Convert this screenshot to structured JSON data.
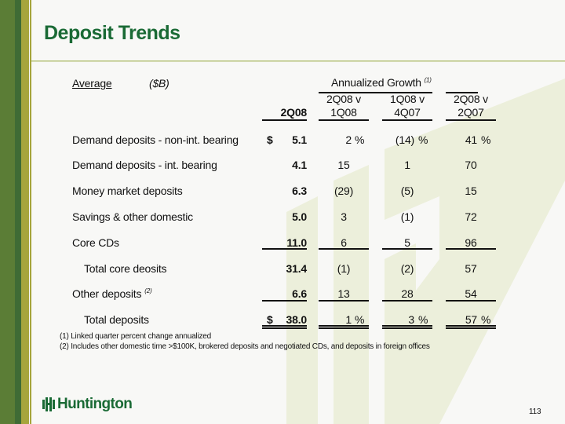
{
  "title": "Deposit Trends",
  "header": {
    "average": "Average",
    "unit": "($B)",
    "growth": "Annualized Growth",
    "growth_note": "(1)",
    "col0": "2Q08",
    "col1": [
      "2Q08 v",
      "1Q08"
    ],
    "col2": [
      "1Q08 v",
      "4Q07"
    ],
    "col3": [
      "2Q08 v",
      "2Q07"
    ]
  },
  "rows": [
    {
      "label": "Demand deposits - non-int. bearing",
      "dollar": "$",
      "value": "5.1",
      "g1": "2",
      "g2": "(14)",
      "g3": "41",
      "pct": "%"
    },
    {
      "label": "Demand deposits - int. bearing",
      "value": "4.1",
      "g1": "15",
      "g2": "1",
      "g3": "70"
    },
    {
      "label": "Money market deposits",
      "value": "6.3",
      "g1": "(29)",
      "g2": "(5)",
      "g3": "15"
    },
    {
      "label": "Savings & other domestic",
      "value": "5.0",
      "g1": "3",
      "g2": "(1)",
      "g3": "72"
    },
    {
      "label": "Core CDs",
      "value": "11.0",
      "g1": "6",
      "g2": "5",
      "g3": "96"
    },
    {
      "label": "Total core deosits",
      "value": "31.4",
      "g1": "(1)",
      "g2": "(2)",
      "g3": "57"
    },
    {
      "label": "Other deposits",
      "note": "(2)",
      "value": "6.6",
      "g1": "13",
      "g2": "28",
      "g3": "54"
    },
    {
      "label": "Total deposits",
      "dollar": "$",
      "value": "38.0",
      "g1": "1",
      "g2": "3",
      "g3": "57",
      "pct": "%"
    }
  ],
  "footnotes": [
    "(1)  Linked quarter percent change annualized",
    "(2)  Includes other domestic time >$100K, brokered deposits and negotiated CDs, and deposits in foreign offices"
  ],
  "logo": "Huntington",
  "page_number": "113",
  "colors": {
    "title": "#1a6a35",
    "stripe_green": "#5b7d36",
    "stripe_dark": "#3f6b35",
    "stripe_olive": "#a6a53c",
    "watermark": "#ecefdb"
  }
}
